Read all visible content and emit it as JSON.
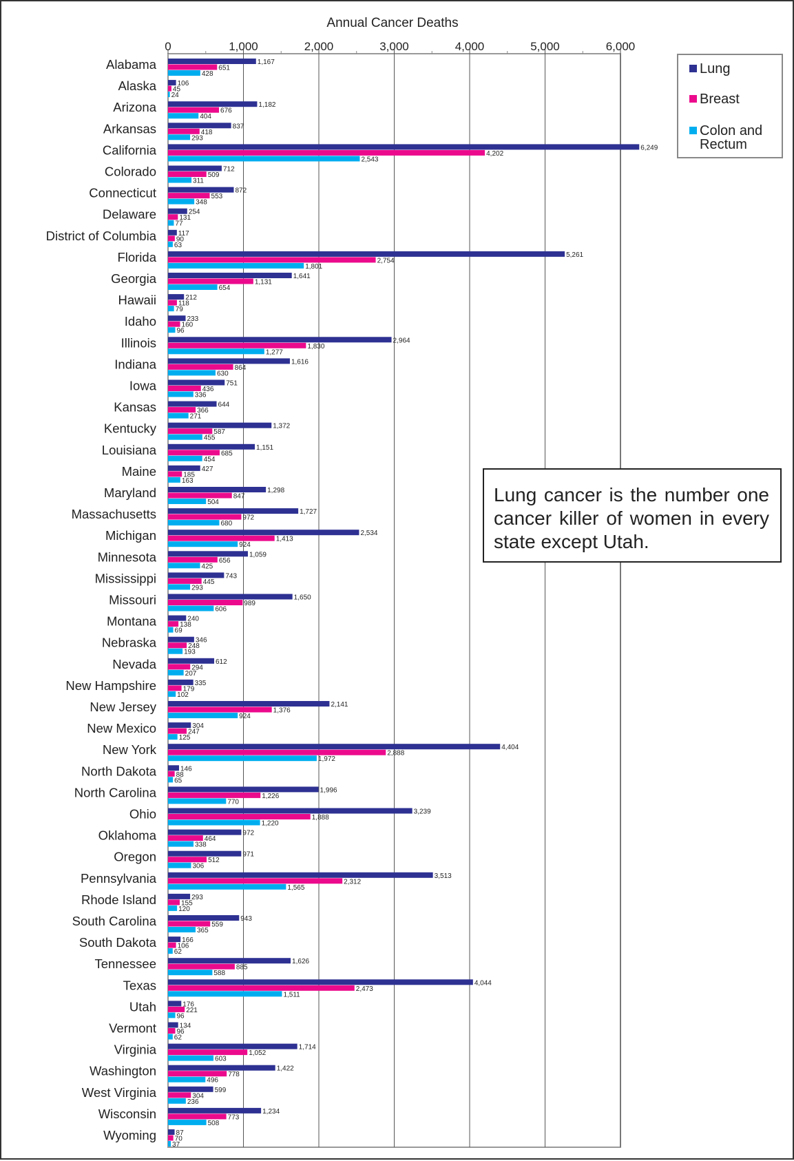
{
  "chart_data": {
    "type": "bar",
    "orientation": "horizontal",
    "title": "Annual Cancer Deaths",
    "xlim": [
      0,
      6000
    ],
    "xticks": [
      "0",
      "1,000",
      "2,000",
      "3,000",
      "4,000",
      "5,000",
      "6,000"
    ],
    "grid": true,
    "legend_position": "top-right",
    "colors": {
      "Lung": "#2e3192",
      "Breast": "#ec0a8c",
      "Colon and Rectum": "#00aeef"
    },
    "categories": [
      "Alabama",
      "Alaska",
      "Arizona",
      "Arkansas",
      "California",
      "Colorado",
      "Connecticut",
      "Delaware",
      "District of Columbia",
      "Florida",
      "Georgia",
      "Hawaii",
      "Idaho",
      "Illinois",
      "Indiana",
      "Iowa",
      "Kansas",
      "Kentucky",
      "Louisiana",
      "Maine",
      "Maryland",
      "Massachusetts",
      "Michigan",
      "Minnesota",
      "Mississippi",
      "Missouri",
      "Montana",
      "Nebraska",
      "Nevada",
      "New Hampshire",
      "New Jersey",
      "New Mexico",
      "New York",
      "North Dakota",
      "North Carolina",
      "Ohio",
      "Oklahoma",
      "Oregon",
      "Pennsylvania",
      "Rhode Island",
      "South Carolina",
      "South Dakota",
      "Tennessee",
      "Texas",
      "Utah",
      "Vermont",
      "Virginia",
      "Washington",
      "West Virginia",
      "Wisconsin",
      "Wyoming"
    ],
    "series": [
      {
        "name": "Lung",
        "values": [
          1167,
          106,
          1182,
          837,
          6249,
          712,
          872,
          254,
          117,
          5261,
          1641,
          212,
          233,
          2964,
          1616,
          751,
          644,
          1372,
          1151,
          427,
          1298,
          1727,
          2534,
          1059,
          743,
          1650,
          240,
          346,
          612,
          335,
          2141,
          304,
          4404,
          146,
          1996,
          3239,
          972,
          971,
          3513,
          293,
          943,
          166,
          1626,
          4044,
          176,
          134,
          1714,
          1422,
          599,
          1234,
          87
        ]
      },
      {
        "name": "Breast",
        "values": [
          651,
          45,
          676,
          418,
          4202,
          509,
          553,
          131,
          90,
          2754,
          1131,
          118,
          160,
          1830,
          864,
          436,
          366,
          587,
          685,
          185,
          847,
          972,
          1413,
          656,
          445,
          989,
          138,
          248,
          294,
          179,
          1376,
          247,
          2888,
          88,
          1226,
          1888,
          464,
          512,
          2312,
          155,
          559,
          106,
          885,
          2473,
          221,
          96,
          1052,
          778,
          304,
          773,
          70
        ]
      },
      {
        "name": "Colon and Rectum",
        "values": [
          428,
          24,
          404,
          293,
          2543,
          311,
          348,
          77,
          63,
          1801,
          654,
          79,
          96,
          1277,
          630,
          336,
          271,
          455,
          454,
          163,
          504,
          680,
          924,
          425,
          293,
          606,
          69,
          193,
          207,
          102,
          924,
          125,
          1972,
          65,
          770,
          1220,
          338,
          306,
          1565,
          120,
          365,
          62,
          588,
          1511,
          96,
          62,
          603,
          496,
          236,
          508,
          37
        ]
      }
    ],
    "annotation": "Lung cancer is the number one cancer killer of women in every state except Utah."
  }
}
